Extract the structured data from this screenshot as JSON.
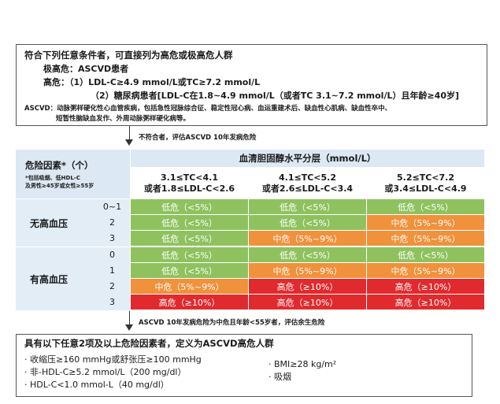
{
  "top_box": {
    "title": "符合下列任意条件者，可直接列为高危或极高危人群",
    "very_high": "极高危：ASCVD患者",
    "high_1": "高危：（1）LDL-C≥4.9 mmol/L或TC≥7.2 mmol/L",
    "high_2": "（2）糖尿病患者[LDL-C在1.8~4.9 mmol/L（或者TC 3.1~7.2 mmol/L）且年龄≥40岁]",
    "ascvd_note_1": "ASCVD：动脉粥样硬化性心血管疾病，包括急性冠脉综合征、稳定性冠心病、血运重建术后、缺血性心肌病、缺血性卒中、",
    "ascvd_note_2": "短暂性脑缺血发作、外周动脉粥样硬化病等。"
  },
  "flow_1": "不符合者，评估ASCVD 10年发病危险",
  "flow_2": "ASCVD 10年发病危险为中危且年龄<55岁者，评估余生危险",
  "table": {
    "risk_factor_title": "危险因素*（个）",
    "risk_factor_note_1": "*包括吸烟、低HDL-C",
    "risk_factor_note_2": "及男性≥45岁或女性≥55岁",
    "lipid_header": "血清胆固醇水平分层（mmol/L）",
    "col_headers": [
      {
        "line1": "3.1≤TC<4.1",
        "line2": "或者1.8≤LDL-C<2.6"
      },
      {
        "line1": "4.1≤TC<5.2",
        "line2": "或者2.6≤LDL-C<3.4"
      },
      {
        "line1": "5.2≤TC<7.2",
        "line2": "或3.4≤LDL-C<4.9"
      }
    ],
    "group_no_htn": "无高血压",
    "group_htn": "有高血压",
    "rows": [
      {
        "count": "0~1",
        "cells": [
          "低危（<5%）",
          "低危（<5%）",
          "低危（<5%）"
        ],
        "levels": [
          "low",
          "low",
          "low"
        ]
      },
      {
        "count": "2",
        "cells": [
          "低危（<5%）",
          "低危（<5%）",
          "中危（5%~9%）"
        ],
        "levels": [
          "low",
          "low",
          "mid"
        ]
      },
      {
        "count": "3",
        "cells": [
          "低危（<5%）",
          "中危（5%~9%）",
          "中危（5%~9%）"
        ],
        "levels": [
          "low",
          "mid",
          "mid"
        ]
      },
      {
        "count": "0",
        "cells": [
          "低危（<5%）",
          "低危（<5%）",
          "低危（<5%）"
        ],
        "levels": [
          "low",
          "low",
          "low"
        ]
      },
      {
        "count": "1",
        "cells": [
          "低危（<5%）",
          "中危（5%~9%）",
          "中危（5%~9%）"
        ],
        "levels": [
          "low",
          "mid",
          "mid"
        ]
      },
      {
        "count": "2",
        "cells": [
          "中危（5%~9%）",
          "高危（≥10%）",
          "高危（≥10%）"
        ],
        "levels": [
          "mid",
          "high",
          "high"
        ]
      },
      {
        "count": "3",
        "cells": [
          "高危（≥10%）",
          "高危（≥10%）",
          "高危（≥10%）"
        ],
        "levels": [
          "high",
          "high",
          "high"
        ]
      }
    ]
  },
  "bottom_box": {
    "title": "具有以下任意2项及以上危险因素者，定义为ASCVD高危人群",
    "items_left": [
      "收缩压≥160 mmHg或舒张压≥100 mmHg",
      "非-HDL-C≥5.2 mmol/L（200 mg/dl）",
      "HDL-C<1.0 mmol-L（40 mg/dl）"
    ],
    "items_right": [
      "BMI≥28 kg/m²",
      "吸烟"
    ]
  },
  "colors": {
    "low": "#8fc25f",
    "mid": "#f0913c",
    "high": "#e12a2e",
    "header": "#dce8f3"
  }
}
